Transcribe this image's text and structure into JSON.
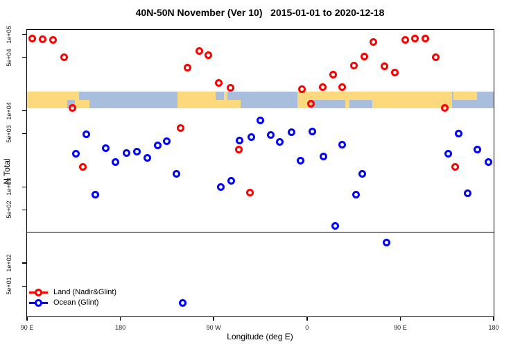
{
  "title": "40N-50N November (Ver 10)   2015-01-01 to 2020-12-18",
  "chart_data": {
    "type": "scatter",
    "title": "40N-50N November (Ver 10)   2015-01-01 to 2020-12-18",
    "xlabel": "Longitude (deg E)",
    "ylabel": "N Total",
    "x_axis": {
      "note": "longitude unrolled eastward from 90E to 180 (90E..540)",
      "min": 90,
      "max": 540,
      "tick_values": [
        90,
        180,
        270,
        360,
        450,
        540
      ],
      "tick_labels": [
        "90 E",
        "180",
        "90 W",
        "0",
        "90 E",
        "180"
      ]
    },
    "y_axis": {
      "scale": "log",
      "min": 20,
      "max": 115000,
      "tick_values": [
        100000,
        50000,
        10000,
        5000,
        1000,
        500,
        100,
        50
      ],
      "tick_labels": [
        "1e+05",
        "5e+04",
        "1e+04",
        "5e+03",
        "1e+03",
        "5e+02",
        "1e+02",
        "5e+01"
      ]
    },
    "grid": false,
    "hline_value": 260,
    "map_band": {
      "value_range": [
        10800,
        17800
      ],
      "land_color": "#FDD97E",
      "ocean_color": "#A9BEDC",
      "land_segments": [
        {
          "lon0": 90,
          "lon1": 129,
          "part": "full"
        },
        {
          "lon0": 128,
          "lon1": 140,
          "part": "top"
        },
        {
          "lon0": 136,
          "lon1": 150,
          "part": "bottom"
        },
        {
          "lon0": 235,
          "lon1": 296,
          "part": "full"
        },
        {
          "lon0": 351,
          "lon1": 500,
          "part": "full"
        },
        {
          "lon0": 501,
          "lon1": 524,
          "part": "top"
        }
      ],
      "ocean_patches": [
        {
          "lon0": 272,
          "lon1": 280,
          "part": "top"
        },
        {
          "lon0": 283,
          "lon1": 296,
          "part": "top"
        },
        {
          "lon0": 364,
          "lon1": 397,
          "part": "bottom"
        },
        {
          "lon0": 401,
          "lon1": 423,
          "part": "bottom"
        }
      ]
    },
    "legend": {
      "position": "bottom-left",
      "items": [
        {
          "label": "Land (Nadir&Glint)",
          "color": "#FF0000"
        },
        {
          "label": "Ocean (Glint)",
          "color": "#0000FF"
        }
      ]
    },
    "series": [
      {
        "name": "Land (Nadir&Glint)",
        "color": "#FF0000",
        "marker": "open-circle",
        "points": [
          [
            95,
            89000
          ],
          [
            105,
            87000
          ],
          [
            115,
            85000
          ],
          [
            126,
            50000
          ],
          [
            134,
            10800
          ],
          [
            144,
            1820
          ],
          [
            238,
            5900
          ],
          [
            245,
            37000
          ],
          [
            256,
            61000
          ],
          [
            265,
            54000
          ],
          [
            275,
            23000
          ],
          [
            286,
            20000
          ],
          [
            294,
            3100
          ],
          [
            305,
            840
          ],
          [
            355,
            19300
          ],
          [
            364,
            12400
          ],
          [
            375,
            20200
          ],
          [
            385,
            30000
          ],
          [
            394,
            20200
          ],
          [
            405,
            39000
          ],
          [
            415,
            51000
          ],
          [
            424,
            79000
          ],
          [
            435,
            38000
          ],
          [
            445,
            32000
          ],
          [
            455,
            84000
          ],
          [
            464,
            89000
          ],
          [
            474,
            89000
          ],
          [
            484,
            50000
          ],
          [
            493,
            10800
          ],
          [
            503,
            1820
          ]
        ]
      },
      {
        "name": "Ocean (Glint)",
        "color": "#0000FF",
        "marker": "open-circle",
        "points": [
          [
            137,
            2700
          ],
          [
            147,
            4900
          ],
          [
            156,
            800
          ],
          [
            166,
            3200
          ],
          [
            175,
            2100
          ],
          [
            186,
            2800
          ],
          [
            196,
            2900
          ],
          [
            206,
            2400
          ],
          [
            216,
            3500
          ],
          [
            225,
            4000
          ],
          [
            234,
            1500
          ],
          [
            240,
            30
          ],
          [
            277,
            1000
          ],
          [
            287,
            1200
          ],
          [
            295,
            4100
          ],
          [
            306,
            4500
          ],
          [
            315,
            7400
          ],
          [
            325,
            4800
          ],
          [
            334,
            3900
          ],
          [
            345,
            5200
          ],
          [
            354,
            2200
          ],
          [
            365,
            5300
          ],
          [
            376,
            2500
          ],
          [
            387,
            310
          ],
          [
            394,
            3600
          ],
          [
            407,
            800
          ],
          [
            413,
            1500
          ],
          [
            437,
            185
          ],
          [
            496,
            2700
          ],
          [
            506,
            5000
          ],
          [
            515,
            820
          ],
          [
            524,
            3100
          ],
          [
            535,
            2100
          ]
        ]
      }
    ]
  }
}
